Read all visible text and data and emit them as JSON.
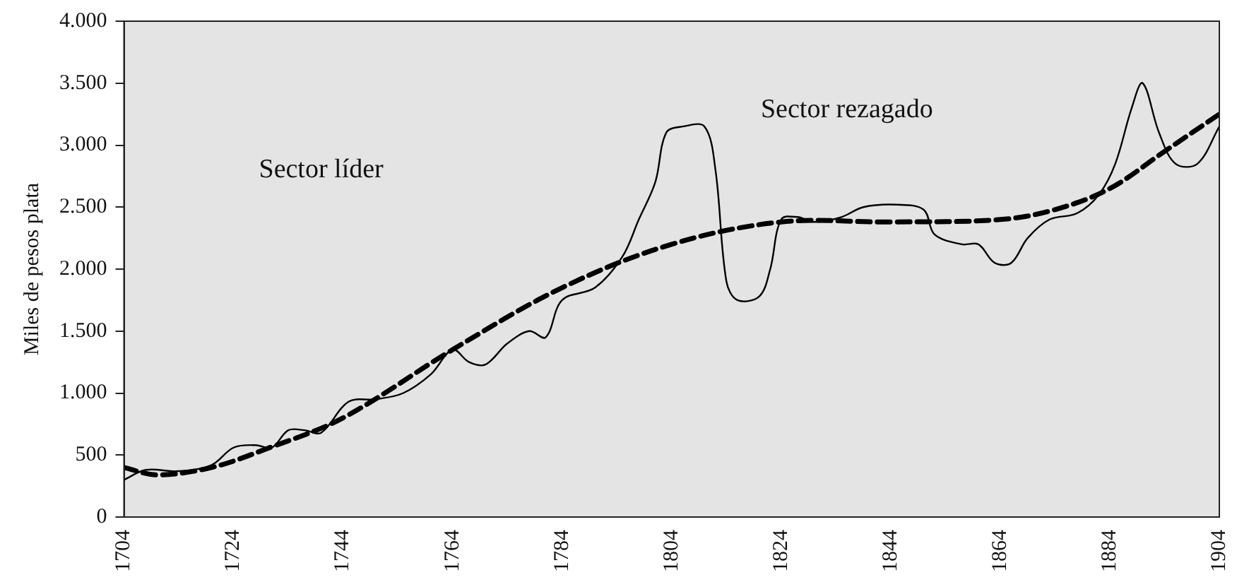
{
  "chart_data": {
    "type": "line",
    "ylabel": "Miles de pesos plata",
    "xlim": [
      1704,
      1904
    ],
    "xticks": [
      1704,
      1724,
      1744,
      1764,
      1784,
      1804,
      1824,
      1844,
      1864,
      1884,
      1904
    ],
    "ylim": [
      0,
      4000
    ],
    "yticks": [
      0,
      500,
      {
        "value": 1000,
        "label": "1.000"
      },
      {
        "value": 1500,
        "label": "1.500"
      },
      {
        "value": 2000,
        "label": "2.000"
      },
      {
        "value": 2500,
        "label": "2.500"
      },
      {
        "value": 3000,
        "label": "3.000"
      },
      {
        "value": 3500,
        "label": "3.500"
      },
      {
        "value": 4000,
        "label": "4.000"
      }
    ],
    "grid": false,
    "legend": false,
    "marker": "none",
    "annotations": [
      "Sector líder",
      "Sector rezagado"
    ],
    "series": [
      {
        "color": "#000000",
        "line_style": "solid",
        "x": [
          1704,
          1708,
          1714,
          1720,
          1724,
          1728,
          1731,
          1734,
          1737,
          1740,
          1745,
          1750,
          1755,
          1760,
          1764,
          1767,
          1770,
          1774,
          1778,
          1781,
          1784,
          1790,
          1795,
          1798,
          1801,
          1803,
          1806,
          1810,
          1812,
          1814,
          1816,
          1820,
          1822,
          1824,
          1827,
          1830,
          1835,
          1839,
          1845,
          1850,
          1852,
          1857,
          1860,
          1863,
          1866,
          1869,
          1873,
          1878,
          1882,
          1885,
          1888,
          1890,
          1893,
          1896,
          1900,
          1904
        ],
        "values": [
          300,
          380,
          370,
          420,
          560,
          580,
          560,
          700,
          700,
          680,
          930,
          950,
          1000,
          1150,
          1350,
          1250,
          1230,
          1400,
          1500,
          1450,
          1750,
          1850,
          2100,
          2400,
          2700,
          3100,
          3150,
          3150,
          2800,
          1900,
          1750,
          1780,
          2000,
          2400,
          2420,
          2380,
          2420,
          2500,
          2520,
          2480,
          2280,
          2200,
          2200,
          2050,
          2050,
          2250,
          2400,
          2450,
          2600,
          2850,
          3300,
          3500,
          3100,
          2850,
          2850,
          3150
        ]
      },
      {
        "color": "#000000",
        "line_style": "dashed",
        "x": [
          1704,
          1710,
          1720,
          1730,
          1744,
          1764,
          1784,
          1804,
          1824,
          1844,
          1864,
          1874,
          1884,
          1894,
          1904
        ],
        "values": [
          400,
          340,
          400,
          550,
          800,
          1350,
          1850,
          2200,
          2380,
          2380,
          2400,
          2480,
          2650,
          2950,
          3250
        ]
      }
    ]
  }
}
